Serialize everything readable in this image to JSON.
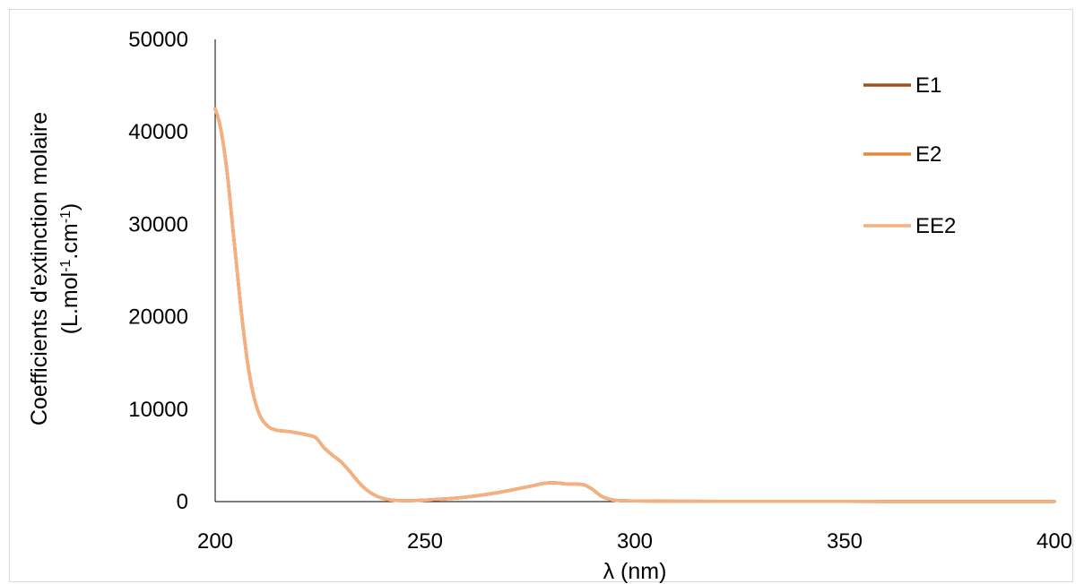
{
  "chart_data": {
    "type": "line",
    "title": "",
    "xlabel": "λ (nm)",
    "ylabel_line1": "Coefficients d'extinction molaire",
    "ylabel_line2": {
      "prefix": "(L.mol",
      "sup1": "-1",
      "mid": ".cm",
      "sup2": "-1",
      "suffix": ")"
    },
    "xlim": [
      200,
      400
    ],
    "ylim": [
      0,
      50000
    ],
    "xticks": [
      200,
      250,
      300,
      350,
      400
    ],
    "yticks": [
      0,
      10000,
      20000,
      30000,
      40000,
      50000
    ],
    "grid": false,
    "legend_position": "top-right",
    "x": [
      200,
      201,
      202,
      203,
      204,
      205,
      206,
      207,
      208,
      209,
      210,
      211,
      212,
      213,
      214,
      215,
      216,
      218,
      220,
      222,
      224,
      226,
      228,
      230,
      232,
      234,
      236,
      238,
      240,
      242,
      245,
      248,
      250,
      255,
      260,
      265,
      270,
      275,
      278,
      280,
      282,
      284,
      286,
      288,
      290,
      292,
      294,
      296,
      300,
      310,
      320,
      350,
      380,
      400
    ],
    "series": [
      {
        "name": "E1",
        "color": "#a0521d",
        "values": [
          42500,
          41000,
          38500,
          35000,
          30500,
          26000,
          21500,
          17500,
          14200,
          11800,
          10100,
          9000,
          8400,
          8000,
          7800,
          7700,
          7650,
          7550,
          7400,
          7200,
          6900,
          5800,
          5000,
          4300,
          3300,
          2200,
          1300,
          700,
          350,
          170,
          100,
          120,
          170,
          300,
          500,
          800,
          1200,
          1650,
          1950,
          2050,
          2000,
          1900,
          1900,
          1800,
          1300,
          600,
          250,
          120,
          70,
          40,
          30,
          20,
          15,
          15
        ]
      },
      {
        "name": "E2",
        "color": "#e8873a",
        "values": [
          42500,
          41000,
          38500,
          35000,
          30500,
          26000,
          21500,
          17500,
          14200,
          11800,
          10100,
          9000,
          8400,
          8000,
          7800,
          7700,
          7650,
          7550,
          7400,
          7200,
          6900,
          5800,
          5000,
          4300,
          3300,
          2200,
          1300,
          700,
          350,
          170,
          100,
          120,
          170,
          300,
          500,
          800,
          1200,
          1650,
          1950,
          2050,
          2000,
          1900,
          1900,
          1800,
          1300,
          600,
          250,
          120,
          70,
          40,
          30,
          20,
          15,
          15
        ]
      },
      {
        "name": "EE2",
        "color": "#f5b07f",
        "values": [
          42500,
          41000,
          38500,
          35000,
          30500,
          26000,
          21500,
          17500,
          14200,
          11800,
          10100,
          9000,
          8400,
          8000,
          7800,
          7700,
          7650,
          7550,
          7400,
          7200,
          6900,
          5800,
          5000,
          4300,
          3300,
          2200,
          1300,
          700,
          350,
          170,
          100,
          120,
          170,
          300,
          500,
          800,
          1200,
          1650,
          1950,
          2050,
          2000,
          1900,
          1900,
          1800,
          1300,
          600,
          250,
          120,
          70,
          40,
          30,
          20,
          15,
          15
        ]
      }
    ]
  }
}
